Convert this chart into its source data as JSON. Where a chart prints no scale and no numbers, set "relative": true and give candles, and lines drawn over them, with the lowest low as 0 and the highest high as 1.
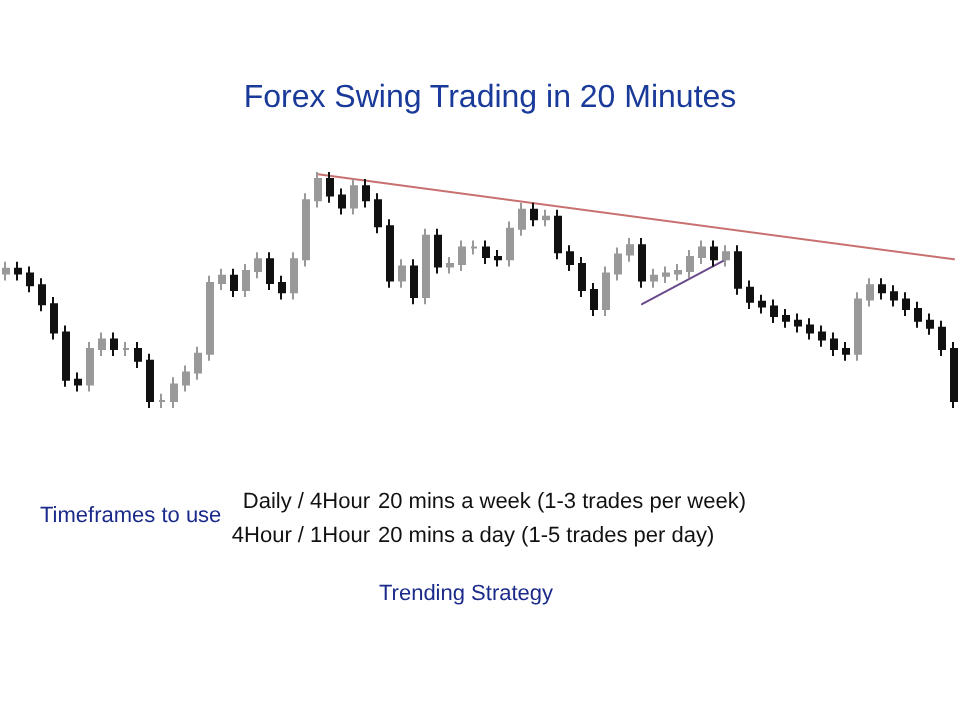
{
  "chart_data": {
    "type": "candlestick",
    "title": "Forex Swing Trading in 20 Minutes",
    "relative": true,
    "categories": [
      null,
      null,
      null,
      null,
      null,
      null,
      null,
      null,
      null,
      null,
      null,
      null,
      null,
      null,
      null,
      null,
      null,
      null,
      null,
      null,
      null,
      null,
      null,
      null,
      null,
      null,
      null,
      null,
      null,
      null,
      null,
      null,
      null,
      null,
      null,
      null,
      null,
      null,
      null,
      null,
      null,
      null,
      null,
      null,
      null,
      null,
      null,
      null,
      null,
      null,
      null,
      null,
      null,
      null,
      null,
      null,
      null,
      null,
      null,
      null,
      null,
      null,
      null,
      null,
      null,
      null,
      null,
      null,
      null,
      null,
      null,
      null,
      null,
      null,
      null,
      null,
      null,
      null,
      null,
      null
    ],
    "ohlc": [
      [
        0.57,
        0.62,
        0.54,
        0.59
      ],
      [
        0.59,
        0.62,
        0.54,
        0.57
      ],
      [
        0.57,
        0.6,
        0.49,
        0.52
      ],
      [
        0.52,
        0.55,
        0.41,
        0.44
      ],
      [
        0.44,
        0.47,
        0.29,
        0.32
      ],
      [
        0.32,
        0.35,
        0.09,
        0.12
      ],
      [
        0.12,
        0.15,
        0.07,
        0.1
      ],
      [
        0.1,
        0.28,
        0.07,
        0.25
      ],
      [
        0.25,
        0.32,
        0.22,
        0.29
      ],
      [
        0.29,
        0.32,
        0.22,
        0.25
      ],
      [
        0.25,
        0.28,
        0.22,
        0.25
      ],
      [
        0.25,
        0.28,
        0.17,
        0.2
      ],
      [
        0.2,
        0.23,
        0,
        0.03
      ],
      [
        0.03,
        0.06,
        0,
        0.03
      ],
      [
        0.03,
        0.13,
        0,
        0.1
      ],
      [
        0.1,
        0.18,
        0.07,
        0.15
      ],
      [
        0.15,
        0.26,
        0.12,
        0.23
      ],
      [
        0.23,
        0.56,
        0.2,
        0.53
      ],
      [
        0.53,
        0.59,
        0.5,
        0.56
      ],
      [
        0.56,
        0.59,
        0.47,
        0.5
      ],
      [
        0.5,
        0.61,
        0.47,
        0.58
      ],
      [
        0.58,
        0.66,
        0.55,
        0.63
      ],
      [
        0.63,
        0.66,
        0.5,
        0.53
      ],
      [
        0.53,
        0.56,
        0.46,
        0.49
      ],
      [
        0.49,
        0.66,
        0.46,
        0.63
      ],
      [
        0.63,
        0.91,
        0.6,
        0.88
      ],
      [
        0.88,
        1,
        0.85,
        0.97
      ],
      [
        0.97,
        1,
        0.87,
        0.9
      ],
      [
        0.9,
        0.93,
        0.82,
        0.85
      ],
      [
        0.85,
        0.97,
        0.82,
        0.94
      ],
      [
        0.94,
        0.97,
        0.85,
        0.88
      ],
      [
        0.88,
        0.91,
        0.74,
        0.77
      ],
      [
        0.77,
        0.8,
        0.51,
        0.54
      ],
      [
        0.54,
        0.63,
        0.51,
        0.6
      ],
      [
        0.6,
        0.63,
        0.44,
        0.47
      ],
      [
        0.47,
        0.76,
        0.44,
        0.73
      ],
      [
        0.73,
        0.76,
        0.57,
        0.6
      ],
      [
        0.6,
        0.64,
        0.57,
        0.61
      ],
      [
        0.61,
        0.71,
        0.58,
        0.68
      ],
      [
        0.68,
        0.71,
        0.65,
        0.68
      ],
      [
        0.68,
        0.71,
        0.61,
        0.64
      ],
      [
        0.64,
        0.67,
        0.6,
        0.63
      ],
      [
        0.63,
        0.79,
        0.6,
        0.76
      ],
      [
        0.76,
        0.87,
        0.73,
        0.84
      ],
      [
        0.84,
        0.87,
        0.77,
        0.8
      ],
      [
        0.8,
        0.84,
        0.77,
        0.81
      ],
      [
        0.81,
        0.84,
        0.63,
        0.66
      ],
      [
        0.66,
        0.69,
        0.58,
        0.61
      ],
      [
        0.61,
        0.64,
        0.47,
        0.5
      ],
      [
        0.5,
        0.53,
        0.39,
        0.42
      ],
      [
        0.42,
        0.6,
        0.39,
        0.57
      ],
      [
        0.57,
        0.68,
        0.54,
        0.65
      ],
      [
        0.65,
        0.72,
        0.62,
        0.69
      ],
      [
        0.69,
        0.72,
        0.51,
        0.54
      ],
      [
        0.54,
        0.59,
        0.51,
        0.56
      ],
      [
        0.56,
        0.6,
        0.53,
        0.57
      ],
      [
        0.57,
        0.61,
        0.54,
        0.58
      ],
      [
        0.58,
        0.67,
        0.55,
        0.64
      ],
      [
        0.64,
        0.71,
        0.61,
        0.68
      ],
      [
        0.68,
        0.71,
        0.6,
        0.63
      ],
      [
        0.63,
        0.69,
        0.6,
        0.66
      ],
      [
        0.66,
        0.69,
        0.48,
        0.51
      ],
      [
        0.51,
        0.54,
        0.42,
        0.45
      ],
      [
        0.45,
        0.48,
        0.4,
        0.43
      ],
      [
        0.43,
        0.46,
        0.36,
        0.39
      ],
      [
        0.39,
        0.42,
        0.34,
        0.37
      ],
      [
        0.37,
        0.4,
        0.32,
        0.35
      ],
      [
        0.35,
        0.38,
        0.29,
        0.32
      ],
      [
        0.32,
        0.35,
        0.26,
        0.29
      ],
      [
        0.29,
        0.32,
        0.22,
        0.25
      ],
      [
        0.25,
        0.28,
        0.2,
        0.23
      ],
      [
        0.23,
        0.49,
        0.2,
        0.46
      ],
      [
        0.46,
        0.55,
        0.43,
        0.52
      ],
      [
        0.52,
        0.55,
        0.46,
        0.49
      ],
      [
        0.49,
        0.52,
        0.43,
        0.46
      ],
      [
        0.46,
        0.49,
        0.39,
        0.42
      ],
      [
        0.42,
        0.45,
        0.34,
        0.37
      ],
      [
        0.37,
        0.4,
        0.31,
        0.34
      ],
      [
        0.34,
        0.37,
        0.22,
        0.25
      ],
      [
        0.25,
        0.28,
        0,
        0.03
      ]
    ],
    "series": [
      {
        "type": "line",
        "color": "#c87070",
        "values": [
          null,
          null,
          null,
          null,
          null,
          null,
          null,
          null,
          null,
          null,
          null,
          null,
          null,
          null,
          null,
          null,
          null,
          null,
          null,
          null,
          null,
          null,
          null,
          null,
          null,
          null,
          0.99,
          null,
          null,
          null,
          null,
          null,
          null,
          null,
          null,
          null,
          null,
          null,
          null,
          null,
          null,
          null,
          null,
          null,
          null,
          null,
          null,
          null,
          null,
          null,
          null,
          null,
          null,
          null,
          null,
          null,
          null,
          null,
          null,
          null,
          null,
          null,
          null,
          null,
          null,
          null,
          null,
          null,
          null,
          null,
          null,
          null,
          null,
          null,
          null,
          null,
          null,
          null,
          null,
          0.63
        ]
      },
      {
        "type": "line",
        "color": "#6a4a8a",
        "values": [
          null,
          null,
          null,
          null,
          null,
          null,
          null,
          null,
          null,
          null,
          null,
          null,
          null,
          null,
          null,
          null,
          null,
          null,
          null,
          null,
          null,
          null,
          null,
          null,
          null,
          null,
          null,
          null,
          null,
          null,
          null,
          null,
          null,
          null,
          null,
          null,
          null,
          null,
          null,
          null,
          null,
          null,
          null,
          null,
          null,
          null,
          null,
          null,
          null,
          null,
          null,
          null,
          null,
          0.44,
          null,
          null,
          null,
          null,
          null,
          null,
          0.63,
          null,
          null,
          null,
          null,
          null,
          null,
          null,
          null,
          null,
          null,
          null,
          null,
          null,
          null,
          null,
          null,
          null,
          null,
          null
        ]
      }
    ],
    "annotations": [
      "Timeframes to use",
      "Daily / 4Hour",
      "20 mins a week (1-3 trades per week)",
      "4Hour / 1Hour",
      "20 mins a day (1-5 trades per day)",
      "Trending Strategy"
    ]
  }
}
